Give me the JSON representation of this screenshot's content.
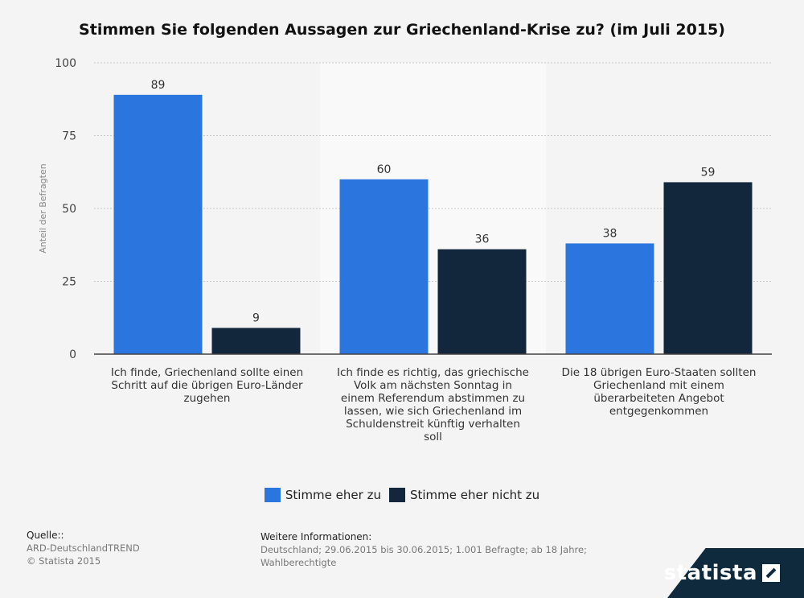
{
  "chart_data": {
    "type": "bar",
    "title": "Stimmen Sie folgenden Aussagen zur Griechenland-Krise zu? (im Juli 2015)",
    "ylabel": "Anteil der Befragten",
    "xlabel": "",
    "ylim": [
      0,
      100
    ],
    "yticks": [
      0,
      25,
      50,
      75,
      100
    ],
    "categories": [
      "Ich finde, Griechenland sollte einen Schritt auf die übrigen Euro-Länder zugehen",
      "Ich finde es richtig, das griechische Volk am nächsten Sonntag in einem Referendum abstimmen zu lassen, wie sich Griechenland im Schuldenstreit künftig verhalten soll",
      "Die 18 übrigen Euro-Staaten sollten Griechenland mit einem überarbeiteten Angebot entgegenkommen"
    ],
    "category_lines": [
      [
        "Ich finde, Griechenland sollte einen",
        "Schritt auf die übrigen Euro-Länder",
        "zugehen"
      ],
      [
        "Ich finde es richtig, das griechische",
        "Volk am nächsten Sonntag in",
        "einem Referendum abstimmen zu",
        "lassen, wie sich Griechenland im",
        "Schuldenstreit künftig verhalten",
        "soll"
      ],
      [
        "Die 18 übrigen Euro-Staaten sollten",
        "Griechenland mit einem",
        "überarbeiteten Angebot",
        "entgegenkommen"
      ]
    ],
    "series": [
      {
        "name": "Stimme eher zu",
        "values": [
          89,
          60,
          38
        ],
        "color": "#2a75de"
      },
      {
        "name": "Stimme eher nicht zu",
        "values": [
          9,
          36,
          59
        ],
        "color": "#12263c"
      }
    ],
    "grid": true,
    "legend_position": "bottom"
  },
  "footer": {
    "source_label": "Quelle::",
    "source_lines": [
      "ARD-DeutschlandTREND",
      "© Statista 2015"
    ],
    "info_label": "Weitere Informationen:",
    "info_text": "Deutschland; 29.06.2015 bis 30.06.2015; 1.001 Befragte; ab 18 Jahre; Wahlberechtigte"
  },
  "brand": {
    "name": "statista"
  }
}
